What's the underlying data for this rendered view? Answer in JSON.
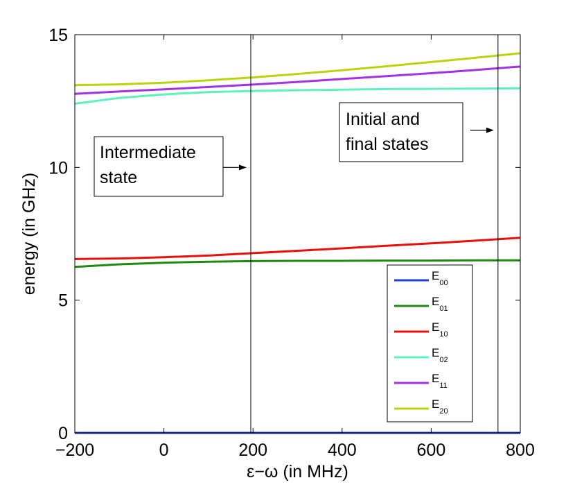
{
  "chart_data": {
    "type": "line",
    "title": "",
    "xlabel": "ε−ω (in MHz)",
    "ylabel": "energy (in GHz)",
    "xlim": [
      -200,
      800
    ],
    "ylim": [
      0,
      15
    ],
    "xticks": [
      -200,
      0,
      200,
      400,
      600,
      800
    ],
    "xtick_labels": [
      "−200",
      "0",
      "200",
      "400",
      "600",
      "800"
    ],
    "yticks": [
      0,
      5,
      10,
      15
    ],
    "ytick_labels": [
      "0",
      "5",
      "10",
      "15"
    ],
    "grid": false,
    "legend_position": "bottom-right",
    "x": [
      -200,
      -100,
      0,
      100,
      200,
      300,
      400,
      500,
      600,
      700,
      800
    ],
    "series": [
      {
        "name": "E00",
        "base": "E",
        "sub": "00",
        "color": "#1f3fd6",
        "values": [
          0,
          0,
          0,
          0,
          0,
          0,
          0,
          0,
          0,
          0,
          0
        ]
      },
      {
        "name": "E01",
        "base": "E",
        "sub": "01",
        "color": "#1e8a0f",
        "values": [
          6.25,
          6.35,
          6.41,
          6.45,
          6.47,
          6.48,
          6.48,
          6.49,
          6.49,
          6.5,
          6.5
        ]
      },
      {
        "name": "E10",
        "base": "E",
        "sub": "10",
        "color": "#e8100d",
        "values": [
          6.55,
          6.57,
          6.62,
          6.68,
          6.77,
          6.86,
          6.95,
          7.05,
          7.14,
          7.24,
          7.35
        ]
      },
      {
        "name": "E02",
        "base": "E",
        "sub": "02",
        "color": "#5ef2bb",
        "values": [
          12.4,
          12.62,
          12.75,
          12.84,
          12.88,
          12.91,
          12.93,
          12.95,
          12.96,
          12.97,
          12.98
        ]
      },
      {
        "name": "E11",
        "base": "E",
        "sub": "11",
        "color": "#a331e6",
        "values": [
          12.77,
          12.86,
          12.94,
          13.03,
          13.12,
          13.22,
          13.33,
          13.44,
          13.55,
          13.67,
          13.8
        ]
      },
      {
        "name": "E20",
        "base": "E",
        "sub": "20",
        "color": "#b9d40e",
        "values": [
          13.1,
          13.13,
          13.19,
          13.28,
          13.39,
          13.52,
          13.66,
          13.81,
          13.97,
          14.13,
          14.3
        ]
      }
    ],
    "vertical_lines": [
      195,
      750
    ],
    "annotations": [
      {
        "lines": [
          "Intermediate",
          "state"
        ],
        "arrow_y": 10,
        "arrow_to_x": 195
      },
      {
        "lines": [
          "Initial and",
          "final states"
        ],
        "arrow_y": 11.4,
        "arrow_to_x": 750
      }
    ]
  }
}
